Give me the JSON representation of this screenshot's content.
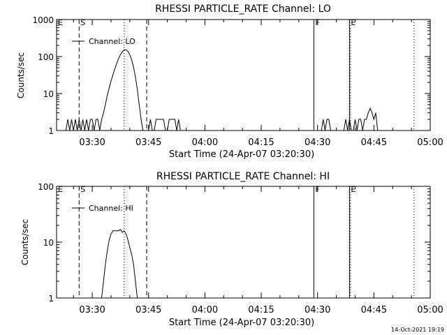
{
  "footer": {
    "timestamp": "14-Oct-2021 19:19"
  },
  "chart_data": [
    {
      "type": "line",
      "title": "RHESSI PARTICLE_RATE Channel: LO",
      "xlabel": "Start Time (24-Apr-07 03:20:30)",
      "ylabel": "Counts/sec",
      "yscale": "log",
      "xlim": [
        "03:20:30",
        "05:00:00"
      ],
      "ylim": [
        1,
        1000
      ],
      "xticks": [
        "03:30",
        "03:45",
        "04:00",
        "04:15",
        "04:30",
        "04:45",
        "05:00"
      ],
      "yticks": [
        "1",
        "10",
        "100",
        "1000"
      ],
      "legend": {
        "label": "Channel: LO",
        "placement": "top-left"
      },
      "markers": [
        {
          "label": "E",
          "time": "03:20:30",
          "style": "solid"
        },
        {
          "label": "S",
          "time": "03:26:30",
          "style": "dashed"
        },
        {
          "label": "",
          "time": "03:38:30",
          "style": "dotted"
        },
        {
          "label": "",
          "time": "03:44:30",
          "style": "dashed"
        },
        {
          "label": "F",
          "time": "04:29:00",
          "style": "solid"
        },
        {
          "label": "E",
          "time": "04:38:30",
          "style": "solid"
        },
        {
          "label": "",
          "time": "04:38:45",
          "style": "dotted"
        },
        {
          "label": "",
          "time": "04:55:40",
          "style": "dotted"
        }
      ],
      "series": [
        {
          "name": "Channel: LO",
          "segments": [
            {
              "x": [
                "03:23:00",
                "03:23:30",
                "03:24:00",
                "03:24:30",
                "03:25:00",
                "03:25:30",
                "03:26:00",
                "03:26:30",
                "03:27:00",
                "03:27:30",
                "03:28:00",
                "03:28:30",
                "03:29:00",
                "03:29:30",
                "03:30:00",
                "03:30:30",
                "03:31:00",
                "03:31:30",
                "03:32:00",
                "03:32:30",
                "03:33:00",
                "03:33:30",
                "03:34:00",
                "03:34:30",
                "03:35:00",
                "03:35:30",
                "03:36:00",
                "03:36:30",
                "03:37:00",
                "03:37:30",
                "03:38:00",
                "03:38:30",
                "03:39:00",
                "03:39:30",
                "03:40:00",
                "03:40:30",
                "03:41:00",
                "03:41:30",
                "03:42:00",
                "03:42:30",
                "03:43:00",
                "03:43:30"
              ],
              "y": [
                1,
                2,
                1,
                2,
                1,
                2,
                1,
                2,
                1,
                2,
                1,
                2,
                1,
                2,
                2,
                1,
                2,
                2,
                1,
                2,
                3,
                5,
                9,
                14,
                22,
                32,
                46,
                64,
                88,
                112,
                135,
                152,
                152,
                138,
                112,
                82,
                52,
                28,
                13,
                5,
                2,
                1
              ]
            },
            {
              "x": [
                "03:45:00",
                "03:45:30",
                "03:46:00",
                "03:46:30",
                "03:47:00",
                "03:47:30",
                "03:48:00",
                "03:48:30",
                "03:49:00",
                "03:49:30",
                "03:50:00",
                "03:50:30",
                "03:51:00",
                "03:51:30",
                "03:52:00",
                "03:52:30",
                "03:53:00",
                "03:53:30"
              ],
              "y": [
                1,
                2,
                1,
                1,
                2,
                2,
                2,
                2,
                2,
                1,
                1,
                2,
                2,
                2,
                2,
                1,
                2,
                1
              ]
            },
            {
              "x": [
                "04:31:00",
                "04:31:30",
                "04:32:00",
                "04:32:30",
                "04:33:00",
                "04:33:30"
              ],
              "y": [
                1,
                2,
                1,
                2,
                2,
                1
              ]
            },
            {
              "x": [
                "04:37:00",
                "04:37:30",
                "04:38:00",
                "04:38:30",
                "04:39:00",
                "04:39:30",
                "04:40:00",
                "04:40:30",
                "04:41:00",
                "04:41:30",
                "04:42:00",
                "04:42:30",
                "04:43:00",
                "04:43:30",
                "04:44:00",
                "04:44:30",
                "04:45:00",
                "04:45:30",
                "04:46:00"
              ],
              "y": [
                1,
                2,
                1,
                2,
                1,
                1,
                2,
                1,
                2,
                2,
                1,
                2,
                2,
                3,
                4,
                3,
                2,
                3,
                1
              ]
            }
          ]
        }
      ]
    },
    {
      "type": "line",
      "title": "RHESSI PARTICLE_RATE Channel: HI",
      "xlabel": "Start Time (24-Apr-07 03:20:30)",
      "ylabel": "Counts/sec",
      "yscale": "log",
      "xlim": [
        "03:20:30",
        "05:00:00"
      ],
      "ylim": [
        1,
        100
      ],
      "xticks": [
        "03:30",
        "03:45",
        "04:00",
        "04:15",
        "04:30",
        "04:45",
        "05:00"
      ],
      "yticks": [
        "1",
        "10",
        "100"
      ],
      "legend": {
        "label": "Channel: HI",
        "placement": "top-left"
      },
      "markers": [
        {
          "label": "E",
          "time": "03:20:30",
          "style": "solid"
        },
        {
          "label": "S",
          "time": "03:26:30",
          "style": "dashed"
        },
        {
          "label": "",
          "time": "03:38:30",
          "style": "dotted"
        },
        {
          "label": "",
          "time": "03:44:30",
          "style": "dashed"
        },
        {
          "label": "F",
          "time": "04:29:00",
          "style": "solid"
        },
        {
          "label": "E",
          "time": "04:38:30",
          "style": "solid"
        },
        {
          "label": "",
          "time": "04:38:45",
          "style": "dotted"
        },
        {
          "label": "",
          "time": "04:55:40",
          "style": "dotted"
        }
      ],
      "series": [
        {
          "name": "Channel: HI",
          "segments": [
            {
              "x": [
                "03:32:30",
                "03:33:00",
                "03:33:30",
                "03:34:00",
                "03:34:30",
                "03:35:00",
                "03:35:30",
                "03:36:00",
                "03:36:30",
                "03:37:00",
                "03:37:30",
                "03:38:00",
                "03:38:30",
                "03:39:00",
                "03:39:30",
                "03:40:00",
                "03:40:30",
                "03:41:00",
                "03:41:30",
                "03:42:00"
              ],
              "y": [
                1,
                2,
                4,
                7,
                11,
                14,
                16,
                16,
                16,
                16,
                17,
                15,
                16,
                14,
                11,
                8,
                6,
                4,
                2,
                1
              ]
            }
          ]
        }
      ]
    }
  ]
}
